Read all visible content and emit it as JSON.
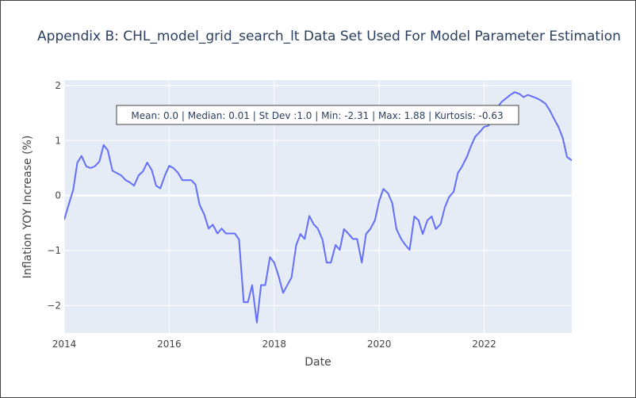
{
  "chart_data": {
    "type": "line",
    "title": "Appendix B: CHL_model_grid_search_lt Data Set Used For Model Parameter Estimation",
    "xlabel": "Date",
    "ylabel": "Inflation YOY Increase (%)",
    "x_ticks": [
      "2014",
      "2016",
      "2018",
      "2020",
      "2022"
    ],
    "y_ticks": [
      "−2",
      "−1",
      "0",
      "1",
      "2"
    ],
    "xlim": [
      2014.0,
      2023.67
    ],
    "ylim": [
      -2.5,
      2.1
    ],
    "grid": true,
    "legend": "none",
    "annotation": "Mean: 0.0 | Median: 0.01 | St Dev :1.0 | Min: -2.31 | Max: 1.88 | Kurtosis: -0.63",
    "series": [
      {
        "color": "#636efa",
        "x": [
          2014.0,
          2014.08,
          2014.17,
          2014.25,
          2014.33,
          2014.42,
          2014.5,
          2014.58,
          2014.67,
          2014.75,
          2014.83,
          2014.92,
          2015.0,
          2015.08,
          2015.17,
          2015.25,
          2015.33,
          2015.42,
          2015.5,
          2015.58,
          2015.67,
          2015.75,
          2015.83,
          2015.92,
          2016.0,
          2016.08,
          2016.17,
          2016.25,
          2016.33,
          2016.42,
          2016.5,
          2016.58,
          2016.67,
          2016.75,
          2016.83,
          2016.92,
          2017.0,
          2017.08,
          2017.17,
          2017.25,
          2017.33,
          2017.42,
          2017.5,
          2017.58,
          2017.67,
          2017.75,
          2017.83,
          2017.92,
          2018.0,
          2018.08,
          2018.17,
          2018.25,
          2018.33,
          2018.42,
          2018.5,
          2018.58,
          2018.67,
          2018.75,
          2018.83,
          2018.92,
          2019.0,
          2019.08,
          2019.17,
          2019.25,
          2019.33,
          2019.42,
          2019.5,
          2019.58,
          2019.67,
          2019.75,
          2019.83,
          2019.92,
          2020.0,
          2020.08,
          2020.17,
          2020.25,
          2020.33,
          2020.42,
          2020.5,
          2020.58,
          2020.67,
          2020.75,
          2020.83,
          2020.92,
          2021.0,
          2021.08,
          2021.17,
          2021.25,
          2021.33,
          2021.42,
          2021.5,
          2021.58,
          2021.67,
          2021.75,
          2021.83,
          2021.92,
          2022.0,
          2022.08,
          2022.17,
          2022.25,
          2022.33,
          2022.42,
          2022.5,
          2022.58,
          2022.67,
          2022.75,
          2022.83,
          2022.92,
          2023.0,
          2023.08,
          2023.17,
          2023.25,
          2023.33,
          2023.42,
          2023.5,
          2023.58,
          2023.67
        ],
        "y": [
          -0.44,
          -0.18,
          0.1,
          0.6,
          0.72,
          0.53,
          0.5,
          0.53,
          0.62,
          0.92,
          0.82,
          0.45,
          0.41,
          0.37,
          0.28,
          0.24,
          0.18,
          0.37,
          0.44,
          0.6,
          0.46,
          0.18,
          0.13,
          0.37,
          0.54,
          0.5,
          0.41,
          0.28,
          0.28,
          0.28,
          0.2,
          -0.17,
          -0.35,
          -0.6,
          -0.53,
          -0.69,
          -0.6,
          -0.69,
          -0.69,
          -0.69,
          -0.8,
          -1.94,
          -1.94,
          -1.63,
          -2.31,
          -1.63,
          -1.63,
          -1.12,
          -1.22,
          -1.45,
          -1.77,
          -1.63,
          -1.49,
          -0.9,
          -0.7,
          -0.79,
          -0.37,
          -0.52,
          -0.6,
          -0.8,
          -1.22,
          -1.22,
          -0.9,
          -0.99,
          -0.61,
          -0.7,
          -0.79,
          -0.79,
          -1.22,
          -0.7,
          -0.61,
          -0.45,
          -0.1,
          0.12,
          0.04,
          -0.14,
          -0.61,
          -0.79,
          -0.9,
          -0.99,
          -0.38,
          -0.45,
          -0.7,
          -0.45,
          -0.38,
          -0.61,
          -0.52,
          -0.22,
          -0.03,
          0.07,
          0.41,
          0.53,
          0.7,
          0.9,
          1.07,
          1.16,
          1.25,
          1.27,
          1.36,
          1.6,
          1.7,
          1.77,
          1.83,
          1.88,
          1.85,
          1.79,
          1.83,
          1.8,
          1.77,
          1.73,
          1.67,
          1.55,
          1.4,
          1.24,
          1.04,
          0.7,
          0.64
        ]
      }
    ]
  }
}
